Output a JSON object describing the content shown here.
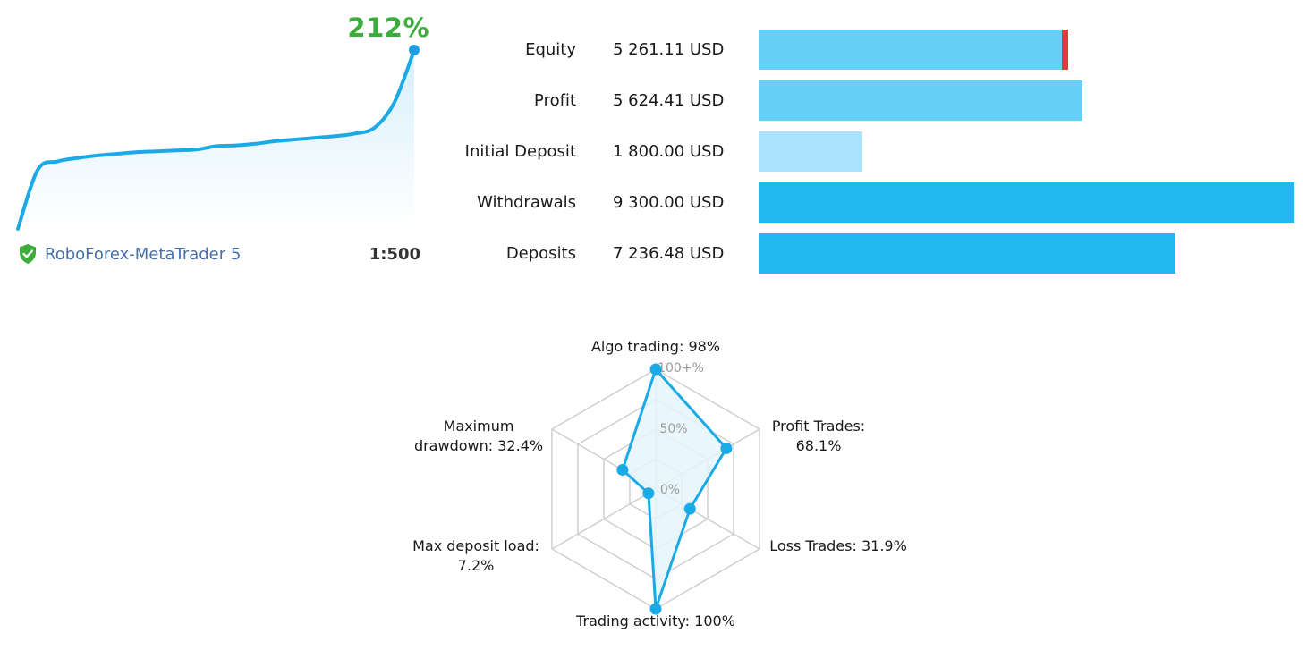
{
  "growth": {
    "percent_label": "212%",
    "broker_name": "RoboForex-MetaTrader 5",
    "leverage": "1:500",
    "line_color": "#1aaae6",
    "endpoint_color": "#1a9fe3",
    "percent_color": "#3cad3a",
    "chart_data": {
      "type": "area",
      "x": [
        0,
        1,
        2,
        3,
        4,
        5,
        6,
        7,
        8,
        9,
        10,
        11,
        12,
        13,
        14,
        15,
        16,
        17,
        18,
        19,
        20
      ],
      "values": [
        0,
        70,
        80,
        84,
        87,
        89,
        91,
        92,
        93,
        94,
        98,
        99,
        101,
        104,
        106,
        108,
        110,
        113,
        120,
        150,
        212
      ],
      "ylim": [
        0,
        212
      ]
    }
  },
  "summary_bars": {
    "chart_data": {
      "type": "bar",
      "categories": [
        "Equity",
        "Profit",
        "Initial Deposit",
        "Withdrawals",
        "Deposits"
      ],
      "value_labels": [
        "5 261.11 USD",
        "5 624.41 USD",
        "1 800.00 USD",
        "9 300.00 USD",
        "7 236.48 USD"
      ],
      "values": [
        5261.11,
        5624.41,
        1800.0,
        9300.0,
        7236.48
      ],
      "xlim": [
        0,
        9300
      ],
      "colors": [
        "#66cff5",
        "#66cff5",
        "#aae3fb",
        "#22b8f0",
        "#22b8f0"
      ],
      "drawdown_marker_color": "#e03a3a"
    }
  },
  "radar": {
    "ring_labels": [
      "100+%",
      "50%",
      "0%"
    ],
    "axis_labels": [
      {
        "lines": [
          "Algo trading: 98%"
        ]
      },
      {
        "lines": [
          "Profit Trades:",
          "68.1%"
        ]
      },
      {
        "lines": [
          "Loss Trades: 31.9%"
        ]
      },
      {
        "lines": [
          "Trading activity: 100%"
        ]
      },
      {
        "lines": [
          "Max deposit load:",
          "7.2%"
        ]
      },
      {
        "lines": [
          "Maximum",
          "drawdown: 32.4%"
        ]
      }
    ],
    "chart_data": {
      "type": "radar",
      "categories": [
        "Algo trading",
        "Profit Trades",
        "Loss Trades",
        "Trading activity",
        "Max deposit load",
        "Maximum drawdown"
      ],
      "values": [
        98,
        68.1,
        31.9,
        100,
        7.2,
        32.4
      ],
      "plotted_levels": [
        1.0,
        0.68,
        0.33,
        1.0,
        0.07,
        0.32
      ],
      "line_color": "#1aaae6",
      "fill_color": "#e5f5fc",
      "grid_color": "#cfcfcf"
    }
  }
}
